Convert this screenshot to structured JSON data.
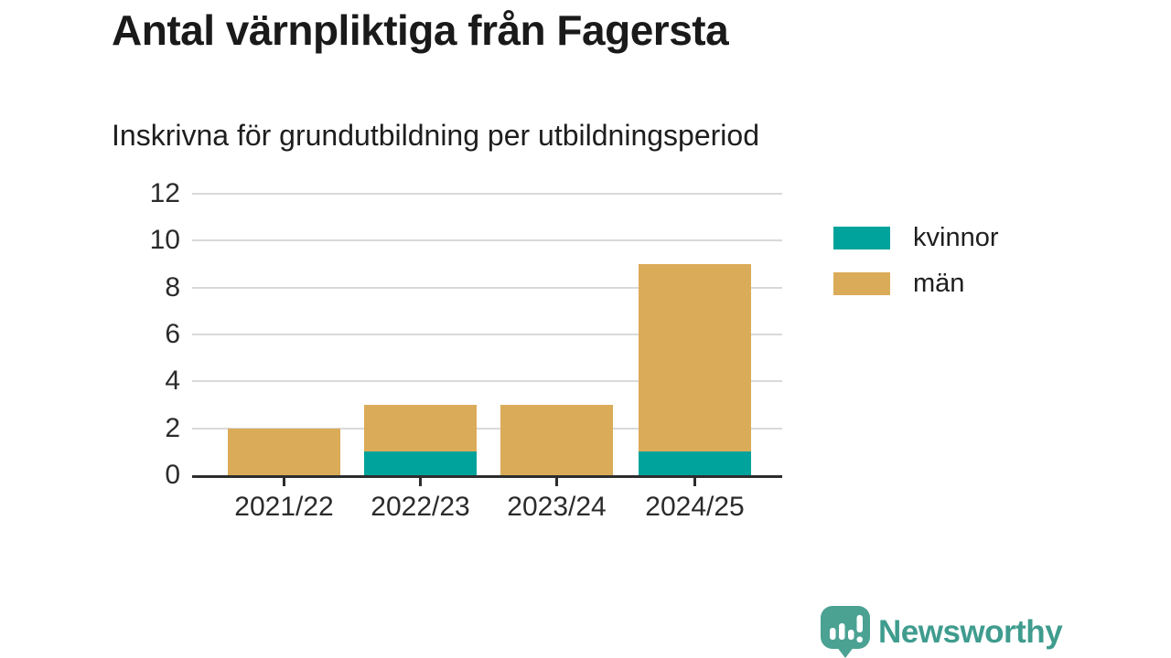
{
  "chart_data": {
    "type": "bar",
    "stacked": true,
    "title": "Antal värnpliktiga från Fagersta",
    "subtitle": "Inskrivna för grundutbildning per utbildningsperiod",
    "categories": [
      "2021/22",
      "2022/23",
      "2023/24",
      "2024/25"
    ],
    "series": [
      {
        "name": "kvinnor",
        "color": "#00A39B",
        "values": [
          0,
          1,
          0,
          1
        ]
      },
      {
        "name": "män",
        "color": "#DAAB58",
        "values": [
          2,
          2,
          3,
          8
        ]
      }
    ],
    "totals": [
      2,
      3,
      3,
      9
    ],
    "ylim": [
      0,
      12
    ],
    "yticks": [
      0,
      2,
      4,
      6,
      8,
      10,
      12
    ],
    "grid": true,
    "legend_position": "right",
    "colors": {
      "gridline": "#d9d9d9",
      "axis": "#2d2d2d",
      "text": "#2b2b2b"
    }
  },
  "footer": {
    "brand": "Newsworthy",
    "brand_color": "#3f9c8e",
    "logo_icon": "bar-chart-speech-bubble-icon"
  }
}
